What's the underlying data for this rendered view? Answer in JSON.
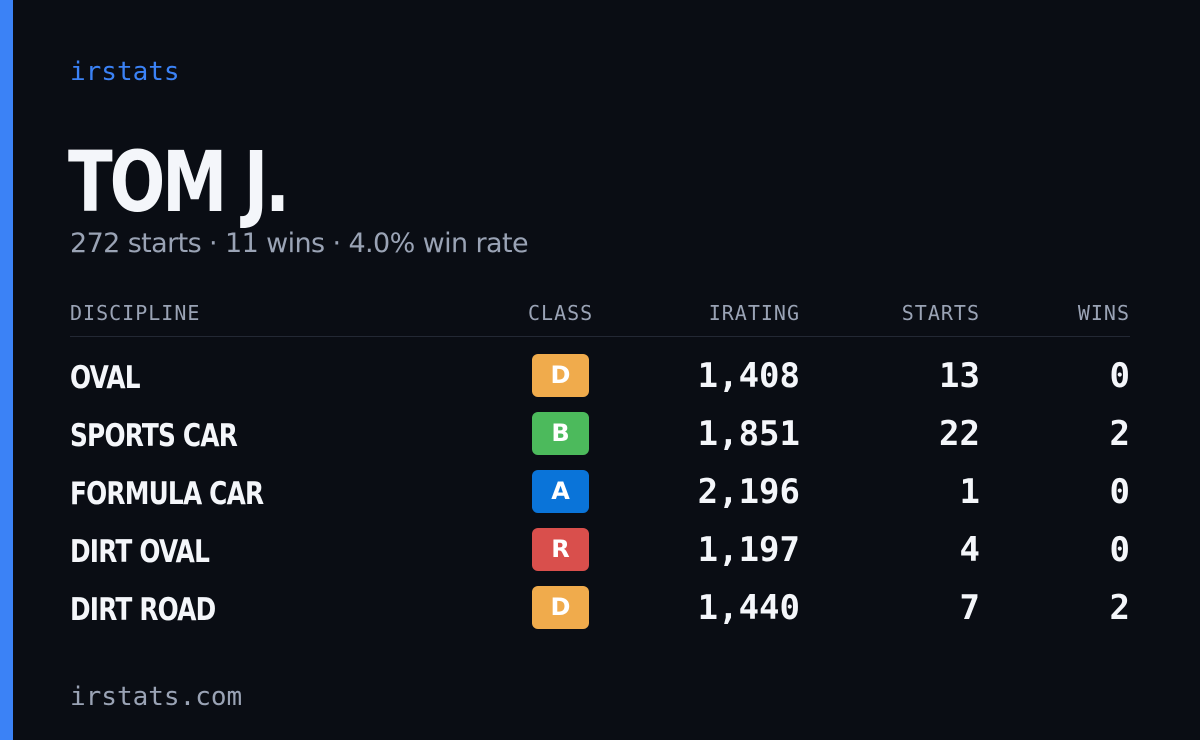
{
  "brand": "irstats",
  "driver": {
    "name": "TOM J.",
    "summary": "272 starts · 11 wins · 4.0% win rate"
  },
  "table": {
    "headers": {
      "discipline": "DISCIPLINE",
      "class": "CLASS",
      "irating": "IRATING",
      "starts": "STARTS",
      "wins": "WINS"
    },
    "rows": [
      {
        "discipline": "OVAL",
        "class": "D",
        "class_color": "#f0ab4c",
        "irating": "1,408",
        "starts": "13",
        "wins": "0"
      },
      {
        "discipline": "SPORTS CAR",
        "class": "B",
        "class_color": "#4cba5c",
        "irating": "1,851",
        "starts": "22",
        "wins": "2"
      },
      {
        "discipline": "FORMULA CAR",
        "class": "A",
        "class_color": "#0a74d9",
        "irating": "2,196",
        "starts": "1",
        "wins": "0"
      },
      {
        "discipline": "DIRT OVAL",
        "class": "R",
        "class_color": "#d94f4c",
        "irating": "1,197",
        "starts": "4",
        "wins": "0"
      },
      {
        "discipline": "DIRT ROAD",
        "class": "D",
        "class_color": "#f0ab4c",
        "irating": "1,440",
        "starts": "7",
        "wins": "2"
      }
    ]
  },
  "footer": "irstats.com",
  "colors": {
    "accent": "#3b82f6",
    "background": "#0a0d14",
    "muted_text": "#9aa3b5"
  }
}
